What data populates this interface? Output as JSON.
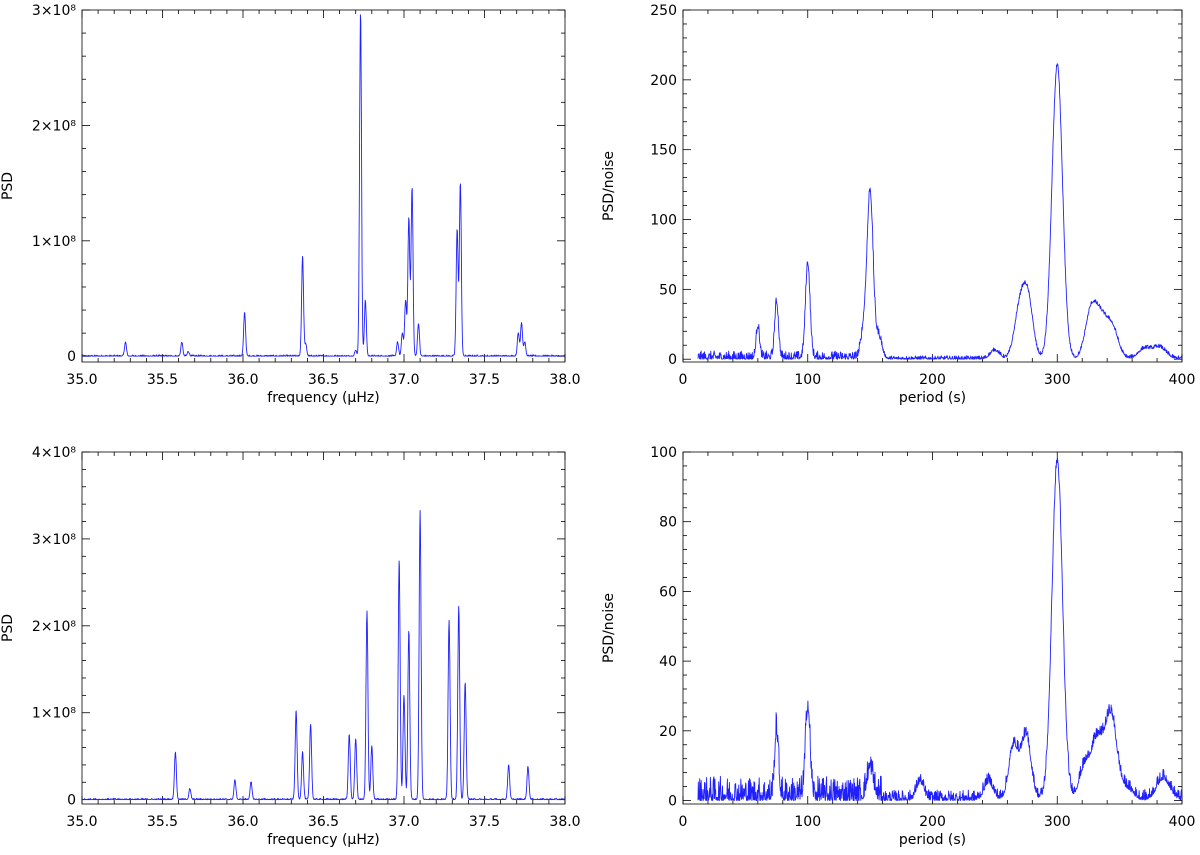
{
  "chart_data": [
    {
      "type": "line",
      "panel": "top-left",
      "xlabel": "frequency (μHz)",
      "ylabel": "PSD",
      "xlim": [
        35.0,
        38.0
      ],
      "ylim": [
        -5000000.0,
        300000000.0
      ],
      "x_ticks": [
        35.0,
        35.5,
        36.0,
        36.5,
        37.0,
        37.5,
        38.0
      ],
      "x_tick_labels": [
        "35.0",
        "35.5",
        "36.0",
        "36.5",
        "37.0",
        "37.5",
        "38.0"
      ],
      "y_ticks": [
        0,
        100000000.0,
        200000000.0,
        300000000.0
      ],
      "y_tick_labels": [
        "0",
        "1×10⁸",
        "2×10⁸",
        "3×10⁸"
      ],
      "color": "#2020ff",
      "peaks": [
        {
          "x": 35.27,
          "y": 12000000.0
        },
        {
          "x": 35.62,
          "y": 12000000.0
        },
        {
          "x": 35.66,
          "y": 4000000.0
        },
        {
          "x": 36.01,
          "y": 38000000.0
        },
        {
          "x": 36.37,
          "y": 87000000.0
        },
        {
          "x": 36.39,
          "y": 10000000.0
        },
        {
          "x": 36.7,
          "y": 5000000.0
        },
        {
          "x": 36.73,
          "y": 298000000.0
        },
        {
          "x": 36.76,
          "y": 48000000.0
        },
        {
          "x": 36.96,
          "y": 12000000.0
        },
        {
          "x": 36.99,
          "y": 20000000.0
        },
        {
          "x": 37.01,
          "y": 48000000.0
        },
        {
          "x": 37.03,
          "y": 120000000.0
        },
        {
          "x": 37.05,
          "y": 146000000.0
        },
        {
          "x": 37.09,
          "y": 28000000.0
        },
        {
          "x": 37.33,
          "y": 110000000.0
        },
        {
          "x": 37.35,
          "y": 150000000.0
        },
        {
          "x": 37.71,
          "y": 20000000.0
        },
        {
          "x": 37.73,
          "y": 29000000.0
        },
        {
          "x": 37.75,
          "y": 12000000.0
        }
      ]
    },
    {
      "type": "line",
      "panel": "top-right",
      "xlabel": "period (s)",
      "ylabel": "PSD/noise",
      "xlim": [
        0,
        400
      ],
      "ylim": [
        -2,
        250
      ],
      "x_ticks": [
        0,
        100,
        200,
        300,
        400
      ],
      "x_tick_labels": [
        "0",
        "100",
        "200",
        "300",
        "400"
      ],
      "y_ticks": [
        0,
        50,
        100,
        150,
        200,
        250
      ],
      "y_tick_labels": [
        "0",
        "50",
        "100",
        "150",
        "200",
        "250"
      ],
      "color": "#2020ff",
      "peaks": [
        {
          "x": 60,
          "y": 23
        },
        {
          "x": 75,
          "y": 40
        },
        {
          "x": 100,
          "y": 68
        },
        {
          "x": 145,
          "y": 20
        },
        {
          "x": 150,
          "y": 118
        },
        {
          "x": 157,
          "y": 15
        },
        {
          "x": 250,
          "y": 6
        },
        {
          "x": 268,
          "y": 18
        },
        {
          "x": 272,
          "y": 25
        },
        {
          "x": 277,
          "y": 36
        },
        {
          "x": 300,
          "y": 210
        },
        {
          "x": 327,
          "y": 33
        },
        {
          "x": 335,
          "y": 25
        },
        {
          "x": 344,
          "y": 22
        },
        {
          "x": 370,
          "y": 7
        },
        {
          "x": 382,
          "y": 8
        }
      ]
    },
    {
      "type": "line",
      "panel": "bottom-left",
      "xlabel": "frequency (μHz)",
      "ylabel": "PSD",
      "xlim": [
        35.0,
        38.0
      ],
      "ylim": [
        -5000000.0,
        400000000.0
      ],
      "x_ticks": [
        35.0,
        35.5,
        36.0,
        36.5,
        37.0,
        37.5,
        38.0
      ],
      "x_tick_labels": [
        "35.0",
        "35.5",
        "36.0",
        "36.5",
        "37.0",
        "37.5",
        "38.0"
      ],
      "y_ticks": [
        0,
        100000000.0,
        200000000.0,
        300000000.0,
        400000000.0
      ],
      "y_tick_labels": [
        "0",
        "1×10⁸",
        "2×10⁸",
        "3×10⁸",
        "4×10⁸"
      ],
      "color": "#2020ff",
      "peaks": [
        {
          "x": 35.58,
          "y": 55000000.0
        },
        {
          "x": 35.67,
          "y": 12000000.0
        },
        {
          "x": 35.95,
          "y": 22000000.0
        },
        {
          "x": 36.05,
          "y": 20000000.0
        },
        {
          "x": 36.33,
          "y": 102000000.0
        },
        {
          "x": 36.37,
          "y": 55000000.0
        },
        {
          "x": 36.42,
          "y": 87000000.0
        },
        {
          "x": 36.66,
          "y": 75000000.0
        },
        {
          "x": 36.7,
          "y": 70000000.0
        },
        {
          "x": 36.77,
          "y": 216000000.0
        },
        {
          "x": 36.8,
          "y": 62000000.0
        },
        {
          "x": 36.97,
          "y": 276000000.0
        },
        {
          "x": 37.0,
          "y": 120000000.0
        },
        {
          "x": 37.03,
          "y": 195000000.0
        },
        {
          "x": 37.1,
          "y": 332000000.0
        },
        {
          "x": 37.28,
          "y": 206000000.0
        },
        {
          "x": 37.34,
          "y": 222000000.0
        },
        {
          "x": 37.38,
          "y": 135000000.0
        },
        {
          "x": 37.65,
          "y": 40000000.0
        },
        {
          "x": 37.77,
          "y": 38000000.0
        }
      ]
    },
    {
      "type": "line",
      "panel": "bottom-right",
      "xlabel": "period (s)",
      "ylabel": "PSD/noise",
      "xlim": [
        0,
        400
      ],
      "ylim": [
        -1,
        100
      ],
      "x_ticks": [
        0,
        100,
        200,
        300,
        400
      ],
      "x_tick_labels": [
        "0",
        "100",
        "200",
        "300",
        "400"
      ],
      "y_ticks": [
        0,
        20,
        40,
        60,
        80,
        100
      ],
      "y_tick_labels": [
        "0",
        "20",
        "40",
        "60",
        "80",
        "100"
      ],
      "color": "#2020ff",
      "peaks": [
        {
          "x": 75,
          "y": 19
        },
        {
          "x": 100,
          "y": 26
        },
        {
          "x": 150,
          "y": 8
        },
        {
          "x": 190,
          "y": 5
        },
        {
          "x": 245,
          "y": 5
        },
        {
          "x": 265,
          "y": 15
        },
        {
          "x": 275,
          "y": 18
        },
        {
          "x": 300,
          "y": 97
        },
        {
          "x": 322,
          "y": 9
        },
        {
          "x": 332,
          "y": 16
        },
        {
          "x": 343,
          "y": 24
        },
        {
          "x": 356,
          "y": 3
        },
        {
          "x": 385,
          "y": 6
        }
      ]
    }
  ]
}
